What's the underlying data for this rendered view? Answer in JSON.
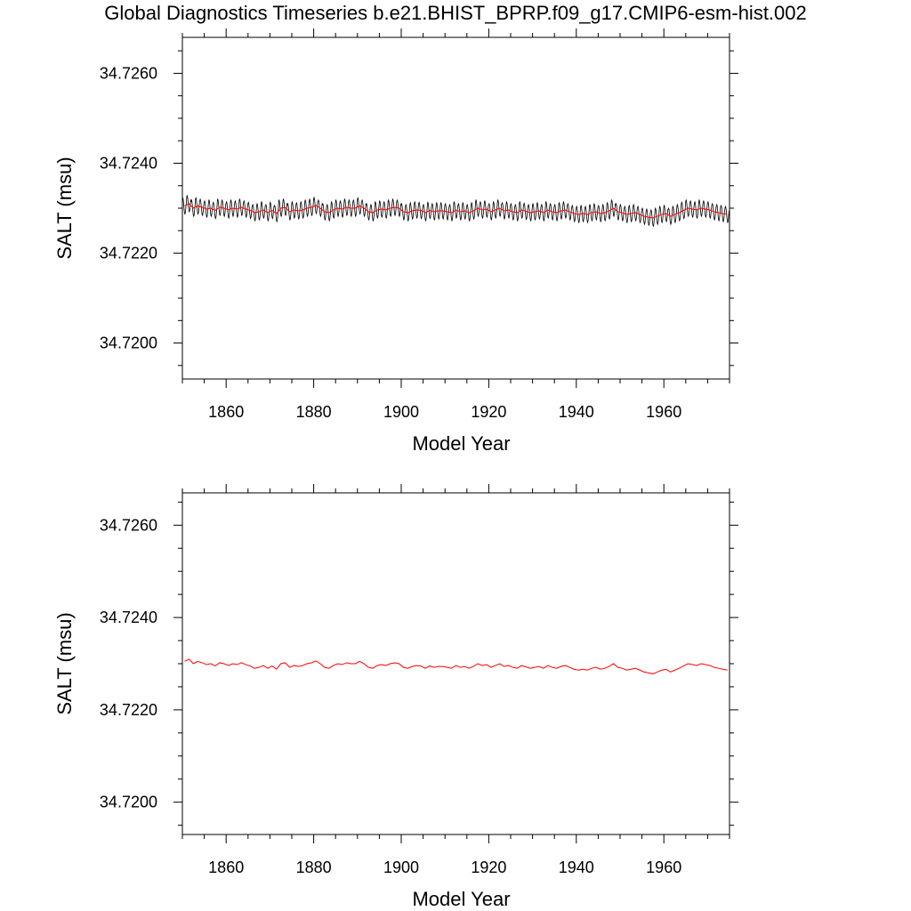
{
  "title": "Global Diagnostics Timeseries b.e21.BHIST_BPRP.f09_g17.CMIP6-esm-hist.002",
  "colors": {
    "monthly": "#000000",
    "annual": "#ff0000",
    "frame": "#000000"
  },
  "chart_data": [
    {
      "type": "line",
      "xlabel": "Model Year",
      "ylabel": "SALT (msu)",
      "xlim": [
        1850,
        1975
      ],
      "ylim": [
        34.7192,
        34.7268
      ],
      "x_ticks": [
        1860,
        1880,
        1900,
        1920,
        1940,
        1960
      ],
      "x_tick_labels": [
        "1860",
        "1880",
        "1900",
        "1920",
        "1940",
        "1960"
      ],
      "y_ticks": [
        34.72,
        34.722,
        34.724,
        34.726
      ],
      "y_tick_labels": [
        "34.7200",
        "34.7220",
        "34.7240",
        "34.7260"
      ],
      "series": [
        {
          "style": "monthly",
          "x_start": 1850,
          "x_step": 0.0833,
          "seasonal_amplitude": 0.00018,
          "values_annual_mean": [
            34.72305,
            34.7231,
            34.723,
            34.72305,
            34.72302,
            34.72298,
            34.723,
            34.72295,
            34.72302,
            34.723,
            34.72296,
            34.723,
            34.72298,
            34.72302,
            34.72298,
            34.72295,
            34.7229,
            34.72292,
            34.72296,
            34.7229,
            34.72295,
            34.72288,
            34.723,
            34.72302,
            34.72292,
            34.72296,
            34.72294,
            34.72296,
            34.723,
            34.72302,
            34.72306,
            34.723,
            34.72292,
            34.7229,
            34.72296,
            34.723,
            34.72298,
            34.72302,
            34.723,
            34.723,
            34.72305,
            34.723,
            34.72292,
            34.7229,
            34.72296,
            34.72298,
            34.72296,
            34.723,
            34.72302,
            34.723,
            34.72292,
            34.7229,
            34.72294,
            34.72296,
            34.72295,
            34.7229,
            34.72295,
            34.72292,
            34.72294,
            34.72294,
            34.72292,
            34.7229,
            34.72296,
            34.72292,
            34.72294,
            34.7229,
            34.72294,
            34.723,
            34.72296,
            34.72298,
            34.72292,
            34.72296,
            34.723,
            34.72294,
            34.72296,
            34.72292,
            34.7229,
            34.72296,
            34.72293,
            34.7229,
            34.72292,
            34.72294,
            34.7229,
            34.72296,
            34.72292,
            34.7229,
            34.72294,
            34.72296,
            34.72292,
            34.72288,
            34.72286,
            34.72288,
            34.72286,
            34.7229,
            34.72292,
            34.72288,
            34.7229,
            34.72294,
            34.723,
            34.72292,
            34.7229,
            34.72286,
            34.72288,
            34.7229,
            34.72286,
            34.72282,
            34.7228,
            34.72278,
            34.72282,
            34.72286,
            34.72288,
            34.72282,
            34.72286,
            34.7229,
            34.72295,
            34.723,
            34.72298,
            34.72296,
            34.723,
            34.72298,
            34.72296,
            34.72292,
            34.7229,
            34.72288,
            34.72286
          ]
        },
        {
          "style": "annual",
          "x_start": 1850,
          "x_step": 1,
          "values": [
            34.72305,
            34.7231,
            34.723,
            34.72305,
            34.72302,
            34.72298,
            34.723,
            34.72295,
            34.72302,
            34.723,
            34.72296,
            34.723,
            34.72298,
            34.72302,
            34.72298,
            34.72295,
            34.7229,
            34.72292,
            34.72296,
            34.7229,
            34.72295,
            34.72288,
            34.723,
            34.72302,
            34.72292,
            34.72296,
            34.72294,
            34.72296,
            34.723,
            34.72302,
            34.72306,
            34.723,
            34.72292,
            34.7229,
            34.72296,
            34.723,
            34.72298,
            34.72302,
            34.723,
            34.723,
            34.72305,
            34.723,
            34.72292,
            34.7229,
            34.72296,
            34.72298,
            34.72296,
            34.723,
            34.72302,
            34.723,
            34.72292,
            34.7229,
            34.72294,
            34.72296,
            34.72295,
            34.7229,
            34.72295,
            34.72292,
            34.72294,
            34.72294,
            34.72292,
            34.7229,
            34.72296,
            34.72292,
            34.72294,
            34.7229,
            34.72294,
            34.723,
            34.72296,
            34.72298,
            34.72292,
            34.72296,
            34.723,
            34.72294,
            34.72296,
            34.72292,
            34.7229,
            34.72296,
            34.72293,
            34.7229,
            34.72292,
            34.72294,
            34.7229,
            34.72296,
            34.72292,
            34.7229,
            34.72294,
            34.72296,
            34.72292,
            34.72288,
            34.72286,
            34.72288,
            34.72286,
            34.7229,
            34.72292,
            34.72288,
            34.7229,
            34.72294,
            34.723,
            34.72292,
            34.7229,
            34.72286,
            34.72288,
            34.7229,
            34.72286,
            34.72282,
            34.7228,
            34.72278,
            34.72282,
            34.72286,
            34.72288,
            34.72282,
            34.72286,
            34.7229,
            34.72295,
            34.723,
            34.72298,
            34.72296,
            34.723,
            34.72298,
            34.72296,
            34.72292,
            34.7229,
            34.72288,
            34.72286
          ]
        }
      ]
    },
    {
      "type": "line",
      "xlabel": "Model Year",
      "ylabel": "SALT (msu)",
      "xlim": [
        1850,
        1975
      ],
      "ylim": [
        34.7193,
        34.7267
      ],
      "x_ticks": [
        1860,
        1880,
        1900,
        1920,
        1940,
        1960
      ],
      "x_tick_labels": [
        "1860",
        "1880",
        "1900",
        "1920",
        "1940",
        "1960"
      ],
      "y_ticks": [
        34.72,
        34.722,
        34.724,
        34.726
      ],
      "y_tick_labels": [
        "34.7200",
        "34.7220",
        "34.7240",
        "34.7260"
      ],
      "series": [
        {
          "style": "annual",
          "x_start": 1850,
          "x_step": 1,
          "values": [
            34.72305,
            34.7231,
            34.723,
            34.72305,
            34.72302,
            34.72298,
            34.723,
            34.72295,
            34.72302,
            34.723,
            34.72296,
            34.723,
            34.72298,
            34.72302,
            34.72298,
            34.72295,
            34.7229,
            34.72292,
            34.72296,
            34.7229,
            34.72295,
            34.72288,
            34.723,
            34.72302,
            34.72292,
            34.72296,
            34.72294,
            34.72296,
            34.723,
            34.72302,
            34.72306,
            34.723,
            34.72292,
            34.7229,
            34.72296,
            34.723,
            34.72298,
            34.72302,
            34.723,
            34.723,
            34.72305,
            34.723,
            34.72292,
            34.7229,
            34.72296,
            34.72298,
            34.72296,
            34.723,
            34.72302,
            34.723,
            34.72292,
            34.7229,
            34.72294,
            34.72296,
            34.72295,
            34.7229,
            34.72295,
            34.72292,
            34.72294,
            34.72294,
            34.72292,
            34.7229,
            34.72296,
            34.72292,
            34.72294,
            34.7229,
            34.72294,
            34.723,
            34.72296,
            34.72298,
            34.72292,
            34.72296,
            34.723,
            34.72294,
            34.72296,
            34.72292,
            34.7229,
            34.72296,
            34.72293,
            34.7229,
            34.72292,
            34.72294,
            34.7229,
            34.72296,
            34.72292,
            34.7229,
            34.72294,
            34.72296,
            34.72292,
            34.72288,
            34.72286,
            34.72288,
            34.72286,
            34.7229,
            34.72292,
            34.72288,
            34.7229,
            34.72294,
            34.723,
            34.72292,
            34.7229,
            34.72286,
            34.72288,
            34.7229,
            34.72286,
            34.72282,
            34.7228,
            34.72278,
            34.72282,
            34.72286,
            34.72288,
            34.72282,
            34.72286,
            34.7229,
            34.72295,
            34.723,
            34.72298,
            34.72296,
            34.723,
            34.72298,
            34.72296,
            34.72292,
            34.7229,
            34.72288,
            34.72286
          ]
        }
      ]
    }
  ]
}
